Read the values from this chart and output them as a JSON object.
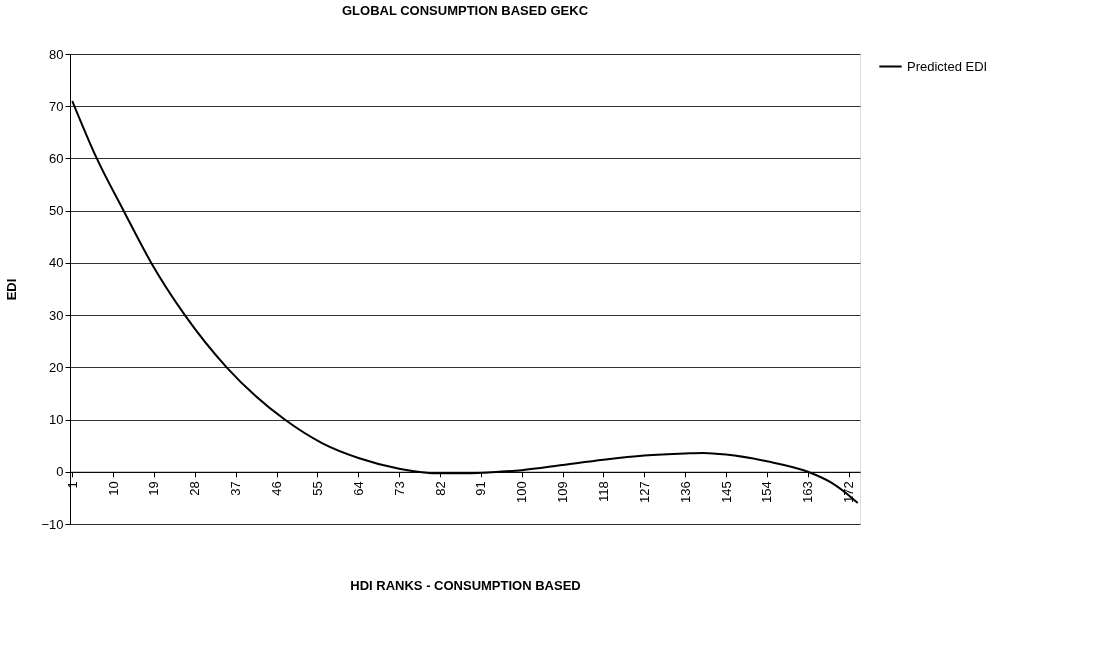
{
  "chart_data": {
    "type": "line",
    "title": "GLOBAL CONSUMPTION BASED GEKC",
    "xlabel": "HDI RANKS - CONSUMPTION BASED",
    "ylabel": "EDI",
    "x": [
      1,
      6.4,
      12.3,
      18.4,
      25.8,
      35,
      47.8,
      56,
      64.2,
      73,
      82,
      88,
      95,
      100,
      109,
      118,
      127,
      136,
      140,
      145,
      154,
      163,
      168,
      172,
      174
    ],
    "series": [
      {
        "name": "Predicted EDI",
        "color": "#000000",
        "values": [
          71,
          60,
          50,
          40,
          30,
          20,
          10,
          5.5,
          2.6,
          0.6,
          -0.3,
          -0.3,
          0,
          0.3,
          1.3,
          2.3,
          3.1,
          3.5,
          3.6,
          3.3,
          2,
          0,
          -2,
          -4.5,
          -6
        ]
      }
    ],
    "xlim": [
      0.5,
      174.5
    ],
    "xticks": [
      1,
      10,
      19,
      28,
      37,
      46,
      55,
      64,
      73,
      82,
      91,
      100,
      109,
      118,
      127,
      136,
      145,
      154,
      163,
      172
    ],
    "ylim": [
      -10,
      80
    ],
    "yticks": [
      -10,
      0,
      10,
      20,
      30,
      40,
      50,
      60,
      70,
      80
    ],
    "grid": "y",
    "legend": "right",
    "marker": "none",
    "line_style": "solid"
  }
}
